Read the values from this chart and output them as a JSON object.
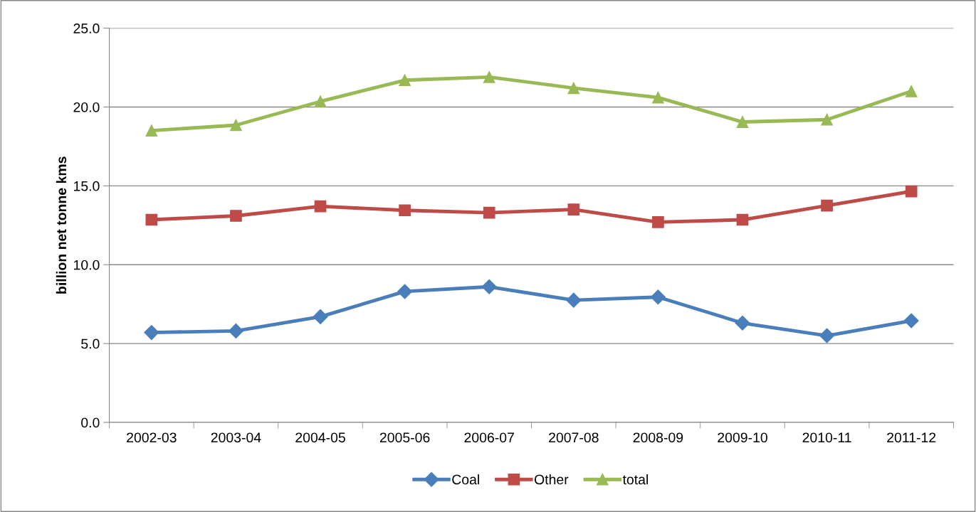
{
  "chart_data": {
    "type": "line",
    "ylabel": "billion net tonne kms",
    "categories": [
      "2002-03",
      "2003-04",
      "2004-05",
      "2005-06",
      "2006-07",
      "2007-08",
      "2008-09",
      "2009-10",
      "2010-11",
      "2011-12"
    ],
    "series": [
      {
        "name": "Coal",
        "color": "#4a7ebb",
        "marker": "diamond",
        "values": [
          5.7,
          5.8,
          6.7,
          8.3,
          8.6,
          7.75,
          7.95,
          6.3,
          5.5,
          6.45
        ]
      },
      {
        "name": "Other",
        "color": "#be4b48",
        "marker": "square",
        "values": [
          12.85,
          13.1,
          13.7,
          13.45,
          13.3,
          13.5,
          12.7,
          12.85,
          13.75,
          14.65
        ]
      },
      {
        "name": "total",
        "color": "#98b954",
        "marker": "triangle",
        "values": [
          18.5,
          18.85,
          20.35,
          21.7,
          21.9,
          21.2,
          20.6,
          19.05,
          19.2,
          21.0
        ]
      }
    ],
    "ylim": [
      0,
      25
    ],
    "yticks": [
      {
        "value": 0,
        "label": "0.0"
      },
      {
        "value": 5,
        "label": "5.0"
      },
      {
        "value": 10,
        "label": "10.0"
      },
      {
        "value": 15,
        "label": "15.0"
      },
      {
        "value": 20,
        "label": "20.0"
      },
      {
        "value": 25,
        "label": "25.0"
      }
    ],
    "grid": "y",
    "legend": "bottom",
    "line_style": "solid"
  }
}
